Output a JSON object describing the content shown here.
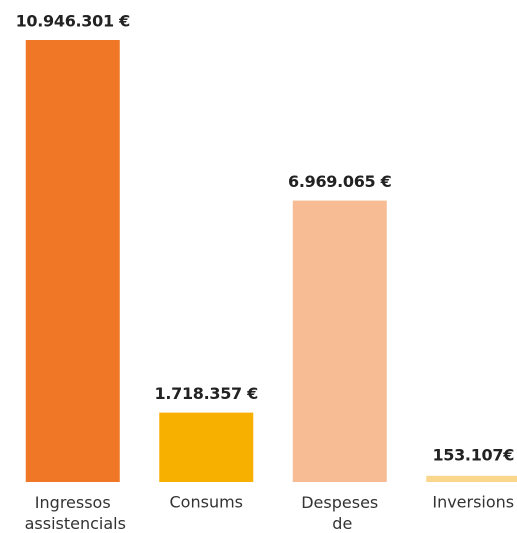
{
  "chart_data": {
    "type": "bar",
    "categories": [
      "Ingressos assistencials",
      "Consums",
      "Despeses de personal",
      "Inversions"
    ],
    "values": [
      10946301,
      1718357,
      6969065,
      153107
    ],
    "value_labels": [
      "10.946.301 €",
      "1.718.357 €",
      "6.969.065 €",
      "153.107€"
    ],
    "colors": [
      "#f07726",
      "#f8b000",
      "#f7bc93",
      "#fbd68d"
    ]
  }
}
